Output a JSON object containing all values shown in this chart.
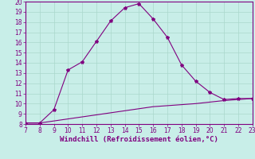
{
  "xlabel": "Windchill (Refroidissement éolien,°C)",
  "x_main": [
    7,
    8,
    8,
    9,
    10,
    11,
    12,
    13,
    14,
    15,
    16,
    17,
    18,
    19,
    20,
    21,
    22,
    23
  ],
  "y_main": [
    8.1,
    8.1,
    8.1,
    9.4,
    13.3,
    14.1,
    16.1,
    18.1,
    19.4,
    19.8,
    18.3,
    16.5,
    13.8,
    12.2,
    11.1,
    10.4,
    10.5,
    10.5
  ],
  "x_line2": [
    7,
    8,
    9,
    10,
    11,
    12,
    13,
    14,
    15,
    16,
    17,
    18,
    19,
    20,
    21,
    22,
    23
  ],
  "y_line2": [
    8.1,
    8.1,
    8.3,
    8.5,
    8.7,
    8.9,
    9.1,
    9.3,
    9.5,
    9.7,
    9.8,
    9.9,
    10.0,
    10.15,
    10.3,
    10.4,
    10.5
  ],
  "line_color": "#800080",
  "bg_color": "#c8eee8",
  "grid_color": "#aad8cc",
  "spine_color": "#800080",
  "xlim": [
    7,
    23
  ],
  "ylim": [
    8,
    20
  ],
  "xticks": [
    7,
    8,
    9,
    10,
    11,
    12,
    13,
    14,
    15,
    16,
    17,
    18,
    19,
    20,
    21,
    22,
    23
  ],
  "yticks": [
    8,
    9,
    10,
    11,
    12,
    13,
    14,
    15,
    16,
    17,
    18,
    19,
    20
  ],
  "tick_color": "#800080",
  "label_color": "#800080",
  "tick_fontsize": 5.5,
  "xlabel_fontsize": 6.5,
  "marker_size": 3,
  "line_width": 0.8
}
